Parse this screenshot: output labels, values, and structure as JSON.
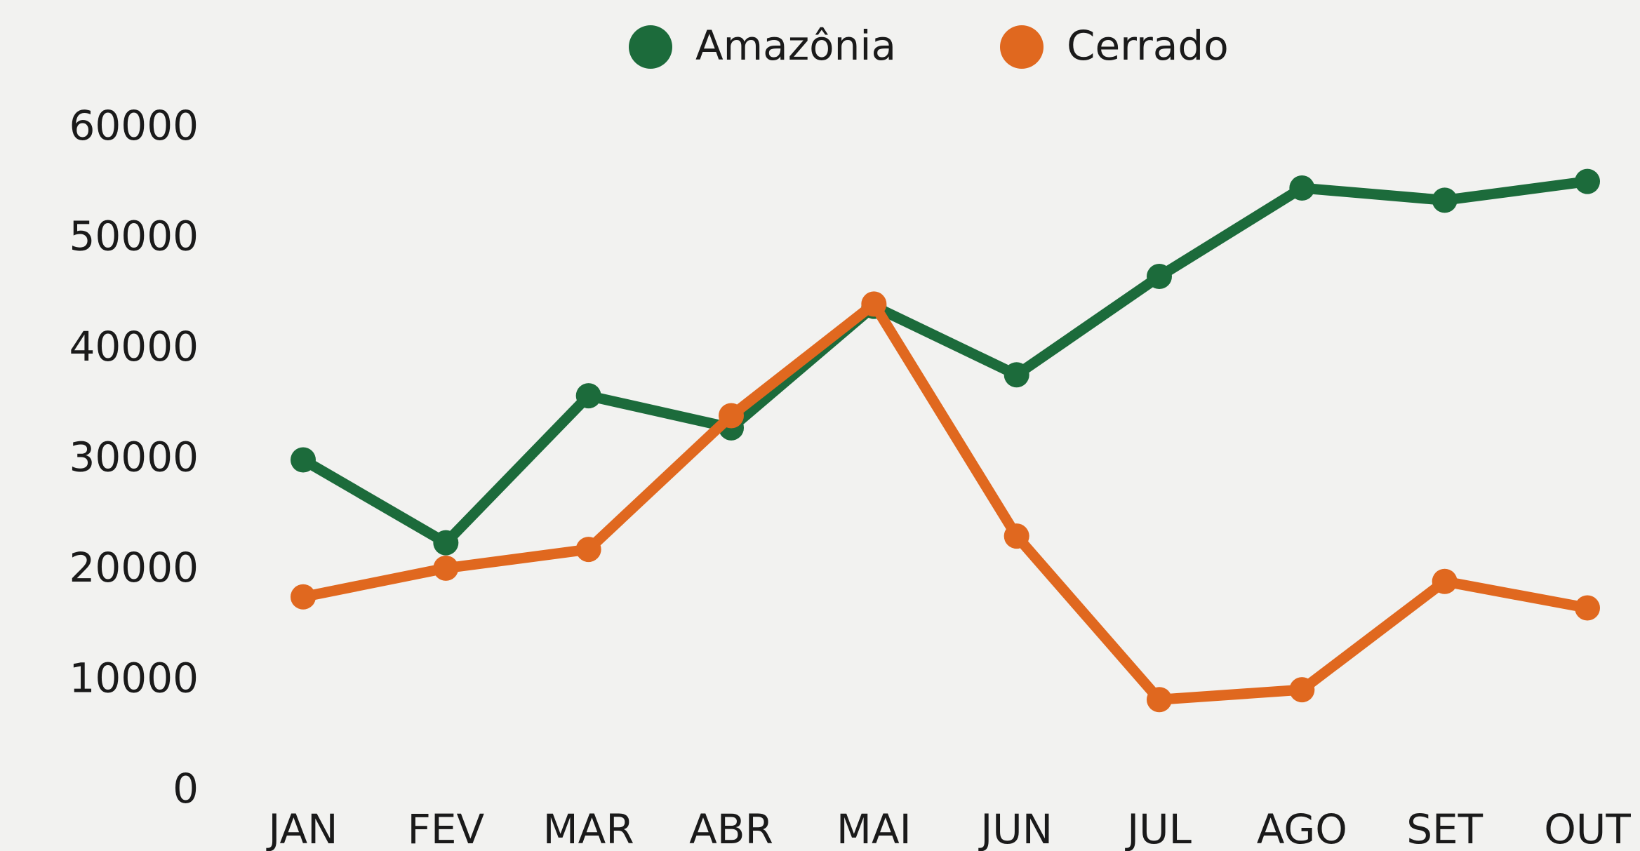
{
  "chart_data": {
    "type": "line",
    "categories": [
      "JAN",
      "FEV",
      "MAR",
      "ABR",
      "MAI",
      "JUN",
      "JUL",
      "AGO",
      "SET",
      "OUT"
    ],
    "series": [
      {
        "name": "Amazônia",
        "color": "#1c6b3b",
        "values": [
          30000,
          22500,
          35800,
          32900,
          43900,
          37700,
          46600,
          54600,
          53500,
          55200
        ]
      },
      {
        "name": "Cerrado",
        "color": "#e0681f",
        "values": [
          17600,
          20200,
          21900,
          34000,
          44100,
          23100,
          8300,
          9200,
          19000,
          16600
        ]
      }
    ],
    "ylim": [
      0,
      60000
    ],
    "yticks": [
      0,
      10000,
      20000,
      30000,
      40000,
      50000,
      60000
    ],
    "grid": false
  }
}
